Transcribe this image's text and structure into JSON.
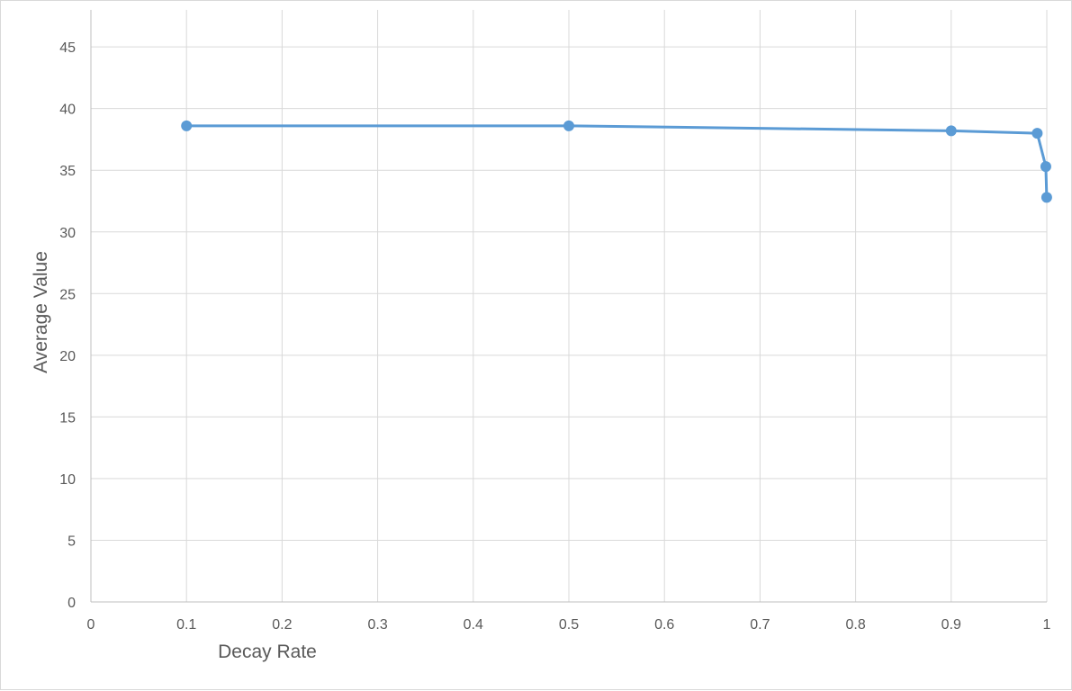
{
  "chart_data": {
    "type": "scatter",
    "title": "",
    "xlabel": "Decay Rate",
    "ylabel": "Average Value",
    "xlim": [
      0,
      1
    ],
    "ylim": [
      0,
      48
    ],
    "x_ticks": [
      0,
      0.1,
      0.2,
      0.3,
      0.4,
      0.5,
      0.6,
      0.7,
      0.8,
      0.9,
      1
    ],
    "x_tick_labels": [
      "0",
      "0.1",
      "0.2",
      "0.3",
      "0.4",
      "0.5",
      "0.6",
      "0.7",
      "0.8",
      "0.9",
      "1"
    ],
    "y_ticks": [
      0,
      5,
      10,
      15,
      20,
      25,
      30,
      35,
      40,
      45
    ],
    "y_tick_labels": [
      "0",
      "5",
      "10",
      "15",
      "20",
      "25",
      "30",
      "35",
      "40",
      "45"
    ],
    "grid": true,
    "legend": "none",
    "series": [
      {
        "name": "Average Value",
        "color": "#5b9bd5",
        "points": [
          {
            "x": 0.1,
            "y": 38.6
          },
          {
            "x": 0.5,
            "y": 38.6
          },
          {
            "x": 0.9,
            "y": 38.2
          },
          {
            "x": 0.99,
            "y": 38.0
          },
          {
            "x": 0.999,
            "y": 35.3
          },
          {
            "x": 0.9999,
            "y": 32.8
          }
        ]
      }
    ]
  }
}
